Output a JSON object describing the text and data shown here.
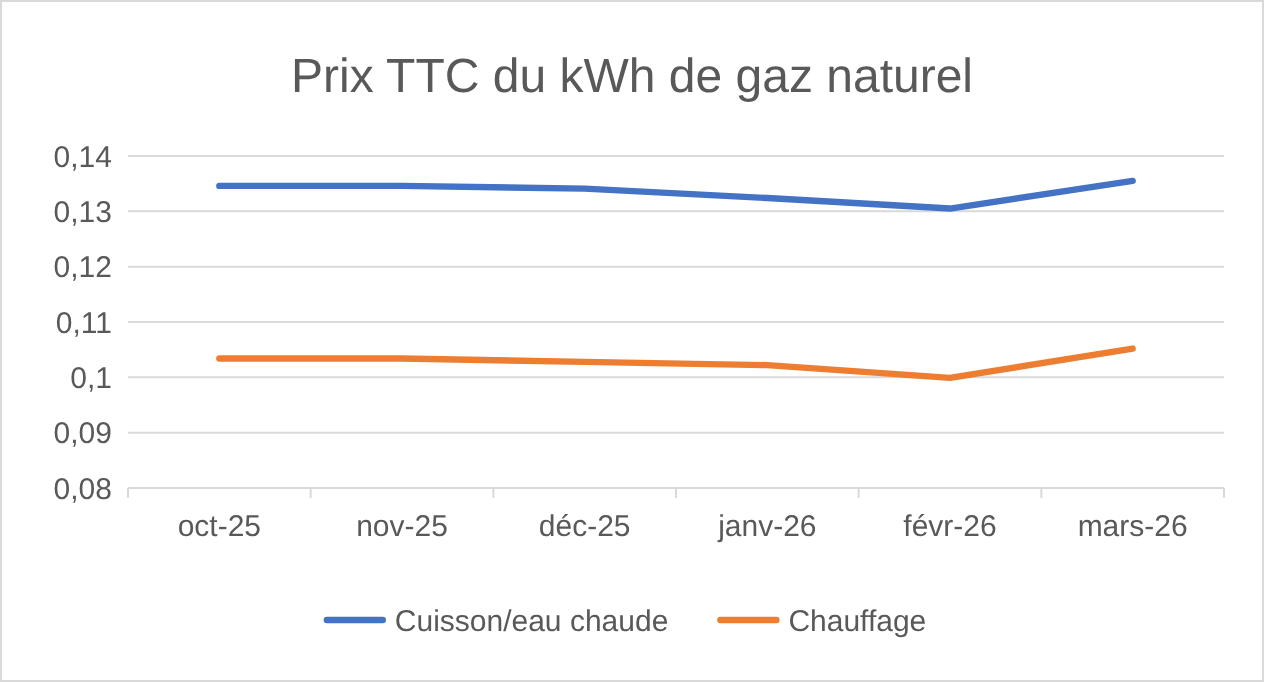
{
  "chart_data": {
    "type": "line",
    "title": "Prix TTC du kWh de gaz naturel",
    "categories": [
      "oct-25",
      "nov-25",
      "déc-25",
      "janv-26",
      "févr-26",
      "mars-26"
    ],
    "series": [
      {
        "name": "Cuisson/eau chaude",
        "color": "#4472c4",
        "values": [
          0.1346,
          0.1346,
          0.1341,
          0.1324,
          0.1305,
          0.1355
        ]
      },
      {
        "name": "Chauffage",
        "color": "#ed7d31",
        "values": [
          0.1034,
          0.1034,
          0.1028,
          0.1022,
          0.0999,
          0.1052
        ]
      }
    ],
    "ylim": [
      0.08,
      0.14
    ],
    "yticks": [
      {
        "value": 0.08,
        "label": "0,08"
      },
      {
        "value": 0.09,
        "label": "0,09"
      },
      {
        "value": 0.1,
        "label": "0,1"
      },
      {
        "value": 0.11,
        "label": "0,11"
      },
      {
        "value": 0.12,
        "label": "0,12"
      },
      {
        "value": 0.13,
        "label": "0,13"
      },
      {
        "value": 0.14,
        "label": "0,14"
      }
    ],
    "grid": "y",
    "legend": "bottom",
    "marker": "none",
    "line_style": "solid"
  }
}
